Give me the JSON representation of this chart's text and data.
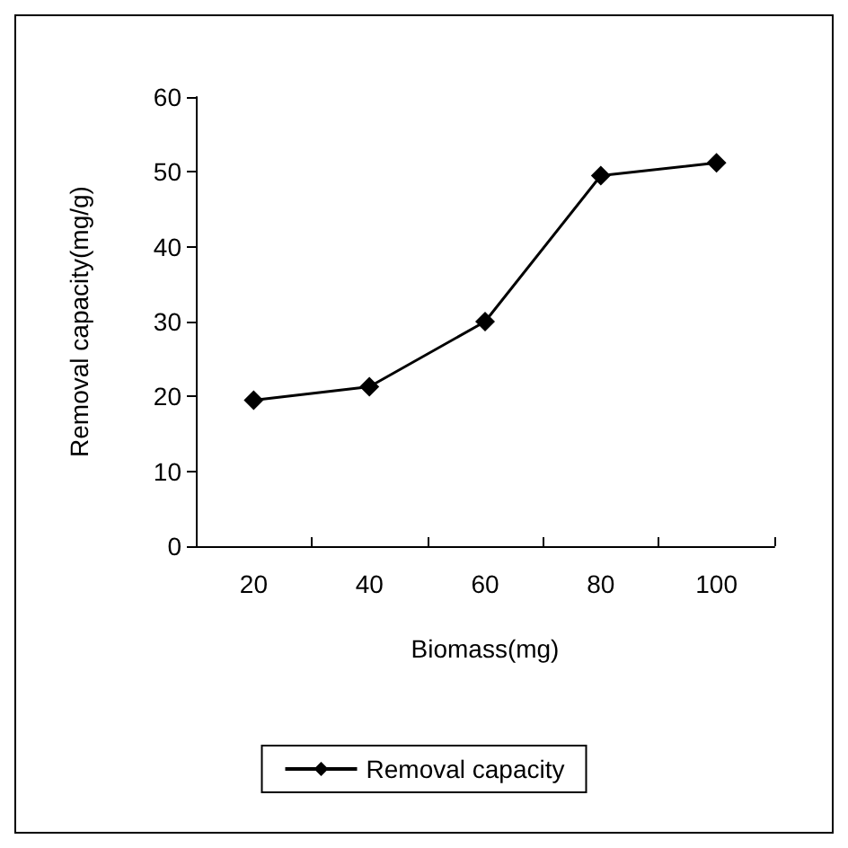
{
  "chart_data": {
    "type": "line",
    "xlabel": "Biomass(mg)",
    "ylabel": "Removal capacity(mg/g)",
    "categories": [
      "20",
      "40",
      "60",
      "80",
      "100"
    ],
    "series": [
      {
        "name": "Removal capacity",
        "color": "#000000",
        "values": [
          19.5,
          21.3,
          30,
          49.5,
          51.2
        ]
      }
    ],
    "ylim": [
      0,
      60
    ],
    "yticks": [
      0,
      10,
      20,
      30,
      40,
      50,
      60
    ],
    "grid": false,
    "legend": "bottom",
    "marker": "diamond",
    "line_style": "solid"
  }
}
